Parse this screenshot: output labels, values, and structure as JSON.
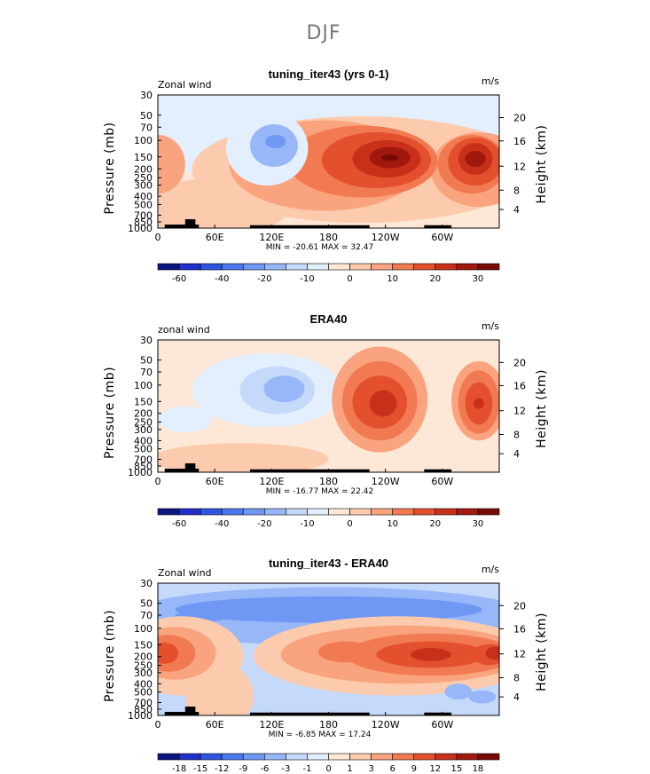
{
  "figure": {
    "title": "DJF"
  },
  "chart_data": [
    {
      "type": "heatmap",
      "title": "tuning_iter43 (yrs 0-1)",
      "left_label": "Zonal wind",
      "units": "m/s",
      "ylabel": "Pressure (mb)",
      "ylabel_right": "Height (km)",
      "x_ticks": [
        "0",
        "60E",
        "120E",
        "180",
        "120W",
        "60W"
      ],
      "y_ticks": [
        "30",
        "50",
        "70",
        "100",
        "150",
        "200",
        "250",
        "300",
        "400",
        "500",
        "700",
        "850",
        "1000"
      ],
      "y_ticks_right": [
        "20",
        "16",
        "12",
        "8",
        "4"
      ],
      "stats": "MIN = -20.61   MAX =  32.47",
      "levels": [
        -60,
        -50,
        -40,
        -30,
        -20,
        -15,
        -10,
        -5,
        0,
        5,
        10,
        15,
        20,
        25,
        30
      ],
      "colorbar_labels": [
        "-60",
        "-40",
        "-20",
        "-10",
        "0",
        "10",
        "20",
        "30"
      ],
      "ylim": [
        1000,
        30
      ],
      "xlim": [
        "0",
        "360"
      ]
    },
    {
      "type": "heatmap",
      "title": "ERA40",
      "left_label": "zonal wind",
      "units": "m/s",
      "ylabel": "Pressure (mb)",
      "ylabel_right": "Height (km)",
      "x_ticks": [
        "0",
        "60E",
        "120E",
        "180",
        "120W",
        "60W"
      ],
      "y_ticks": [
        "30",
        "50",
        "70",
        "100",
        "150",
        "200",
        "250",
        "300",
        "400",
        "500",
        "700",
        "850",
        "1000"
      ],
      "y_ticks_right": [
        "20",
        "16",
        "12",
        "8",
        "4"
      ],
      "stats": "MIN = -16.77   MAX =  22.42",
      "levels": [
        -60,
        -50,
        -40,
        -30,
        -20,
        -15,
        -10,
        -5,
        0,
        5,
        10,
        15,
        20,
        25,
        30
      ],
      "colorbar_labels": [
        "-60",
        "-40",
        "-20",
        "-10",
        "0",
        "10",
        "20",
        "30"
      ],
      "ylim": [
        1000,
        30
      ],
      "xlim": [
        "0",
        "360"
      ]
    },
    {
      "type": "heatmap",
      "title": "tuning_iter43 - ERA40",
      "left_label": "Zonal wind",
      "units": "m/s",
      "ylabel": "Pressure (mb)",
      "ylabel_right": "Height (km)",
      "x_ticks": [
        "0",
        "60E",
        "120E",
        "180",
        "120W",
        "60W"
      ],
      "y_ticks": [
        "30",
        "50",
        "70",
        "100",
        "150",
        "200",
        "250",
        "300",
        "400",
        "500",
        "700",
        "850",
        "1000"
      ],
      "y_ticks_right": [
        "20",
        "16",
        "12",
        "8",
        "4"
      ],
      "stats": "MIN =  -6.85   MAX =  17.24",
      "levels": [
        -18,
        -15,
        -12,
        -9,
        -6,
        -3,
        -1,
        0,
        1,
        3,
        6,
        9,
        12,
        15,
        18
      ],
      "colorbar_labels": [
        "-18",
        "-15",
        "-12",
        "-9",
        "-6",
        "-3",
        "-1",
        "0",
        "1",
        "3",
        "6",
        "9",
        "12",
        "15",
        "18"
      ],
      "ylim": [
        1000,
        30
      ],
      "xlim": [
        "0",
        "360"
      ]
    }
  ],
  "colors": {
    "palette": [
      "#0a1580",
      "#1f2fc9",
      "#2e55e0",
      "#4a78ee",
      "#6f97f4",
      "#98b7f8",
      "#c5d9fb",
      "#e4effd",
      "#fde7d6",
      "#fccbae",
      "#f9a47e",
      "#f27a52",
      "#e4502d",
      "#c8301a",
      "#a0180e",
      "#7a0a06"
    ],
    "topography": "#000000"
  }
}
